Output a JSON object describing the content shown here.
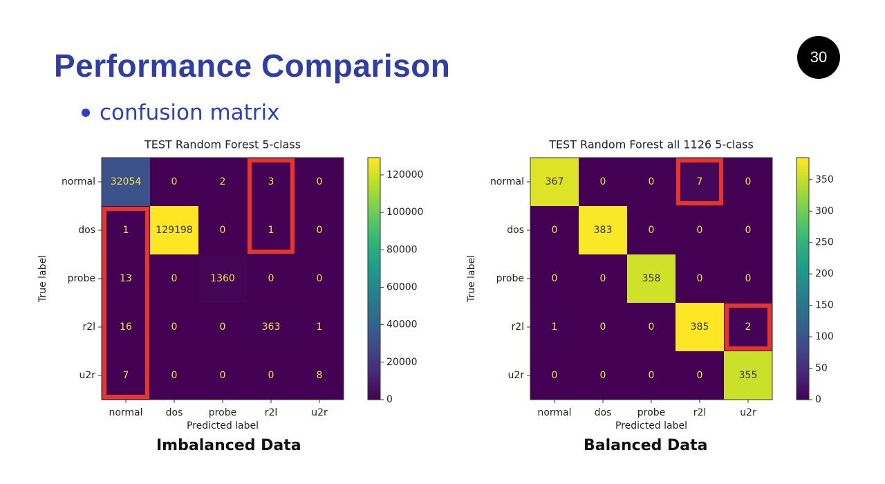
{
  "slide": {
    "title": "Performance Comparison",
    "page_number": "30",
    "bullet": "confusion matrix"
  },
  "captions": {
    "left": "Imbalanced Data",
    "right": "Balanced Data"
  },
  "chart_data": [
    {
      "type": "heatmap",
      "title": "TEST Random Forest 5-class",
      "xlabel": "Predicted label",
      "ylabel": "True label",
      "x": [
        "normal",
        "dos",
        "probe",
        "r2l",
        "u2r"
      ],
      "y": [
        "normal",
        "dos",
        "probe",
        "r2l",
        "u2r"
      ],
      "values": [
        [
          32054,
          0,
          2,
          3,
          0
        ],
        [
          1,
          129198,
          0,
          1,
          0
        ],
        [
          13,
          0,
          1360,
          0,
          0
        ],
        [
          16,
          0,
          0,
          363,
          1
        ],
        [
          7,
          0,
          0,
          0,
          8
        ]
      ],
      "colorbar": {
        "ticks": [
          0,
          20000,
          40000,
          60000,
          80000,
          100000,
          120000
        ],
        "range": [
          0,
          129198
        ]
      },
      "colormap": "viridis",
      "highlights": [
        {
          "col_from": 0,
          "col_to": 0,
          "row_from": 1,
          "row_to": 4
        },
        {
          "col_from": 3,
          "col_to": 3,
          "row_from": 0,
          "row_to": 1
        }
      ],
      "highlight_color": "#e8352a"
    },
    {
      "type": "heatmap",
      "title": "TEST Random Forest all 1126 5-class",
      "xlabel": "Predicted label",
      "ylabel": "True label",
      "x": [
        "normal",
        "dos",
        "probe",
        "r2l",
        "u2r"
      ],
      "y": [
        "normal",
        "dos",
        "probe",
        "r2l",
        "u2r"
      ],
      "values": [
        [
          367,
          0,
          0,
          7,
          0
        ],
        [
          0,
          383,
          0,
          0,
          0
        ],
        [
          0,
          0,
          358,
          0,
          0
        ],
        [
          1,
          0,
          0,
          385,
          2
        ],
        [
          0,
          0,
          0,
          0,
          355
        ]
      ],
      "colorbar": {
        "ticks": [
          0,
          50,
          100,
          150,
          200,
          250,
          300,
          350
        ],
        "range": [
          0,
          385
        ]
      },
      "colormap": "viridis",
      "highlights": [
        {
          "col_from": 3,
          "col_to": 3,
          "row_from": 0,
          "row_to": 0
        },
        {
          "col_from": 4,
          "col_to": 4,
          "row_from": 3,
          "row_to": 3
        }
      ],
      "highlight_color": "#e8352a"
    }
  ]
}
